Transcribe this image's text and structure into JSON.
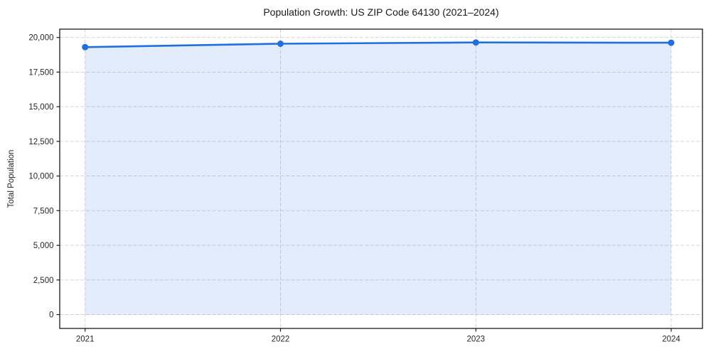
{
  "chart_data": {
    "type": "line",
    "title": "Population Growth: US ZIP Code 64130 (2021–2024)",
    "xlabel": "",
    "ylabel": "Total Population",
    "x": [
      2021,
      2022,
      2023,
      2024
    ],
    "x_tick_labels": [
      "2021",
      "2022",
      "2023",
      "2024"
    ],
    "series": [
      {
        "name": "Total Population",
        "values": [
          19300,
          19550,
          19640,
          19620
        ]
      }
    ],
    "yticks": [
      0,
      2500,
      5000,
      7500,
      10000,
      12500,
      15000,
      17500,
      20000
    ],
    "ytick_labels": [
      "0",
      "2,500",
      "5,000",
      "7,500",
      "10,000",
      "12,500",
      "15,000",
      "17,500",
      "20,000"
    ],
    "xlim": [
      2020.87,
      2024.16
    ],
    "ylim": [
      -1000,
      20600
    ],
    "grid": "both-dashed",
    "legend": false,
    "area_fill_to_zero": true,
    "marker": "circle",
    "colors": {
      "line": "#1f6fe0",
      "marker": "#1f6fe0",
      "area_fill": "rgba(31, 111, 224, 0.13)",
      "grid": "#d0d0d0",
      "spine": "#1a1a1a",
      "tick": "#1a1a1a",
      "background": "#ffffff"
    }
  }
}
